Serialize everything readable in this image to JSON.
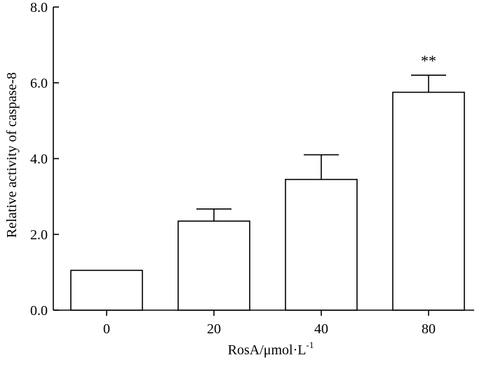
{
  "chart_data": {
    "type": "bar",
    "categories": [
      "0",
      "20",
      "40",
      "80"
    ],
    "values": [
      1.05,
      2.35,
      3.45,
      5.75
    ],
    "error_bars": [
      0.0,
      0.32,
      0.65,
      0.45
    ],
    "annotations": [
      "",
      "",
      "",
      "**"
    ],
    "title": "",
    "xlabel": "RosA/μmol·L",
    "xlabel_superscript": "-1",
    "ylabel": "Relative activity of caspase-8",
    "ylim": [
      0,
      8
    ],
    "yticks": [
      "0.0",
      "2.0",
      "4.0",
      "6.0",
      "8.0"
    ],
    "grid": false,
    "legend": false,
    "colors": {
      "bar_fill": "#ffffff",
      "bar_stroke": "#000000",
      "axis": "#000000",
      "text": "#000000"
    }
  }
}
